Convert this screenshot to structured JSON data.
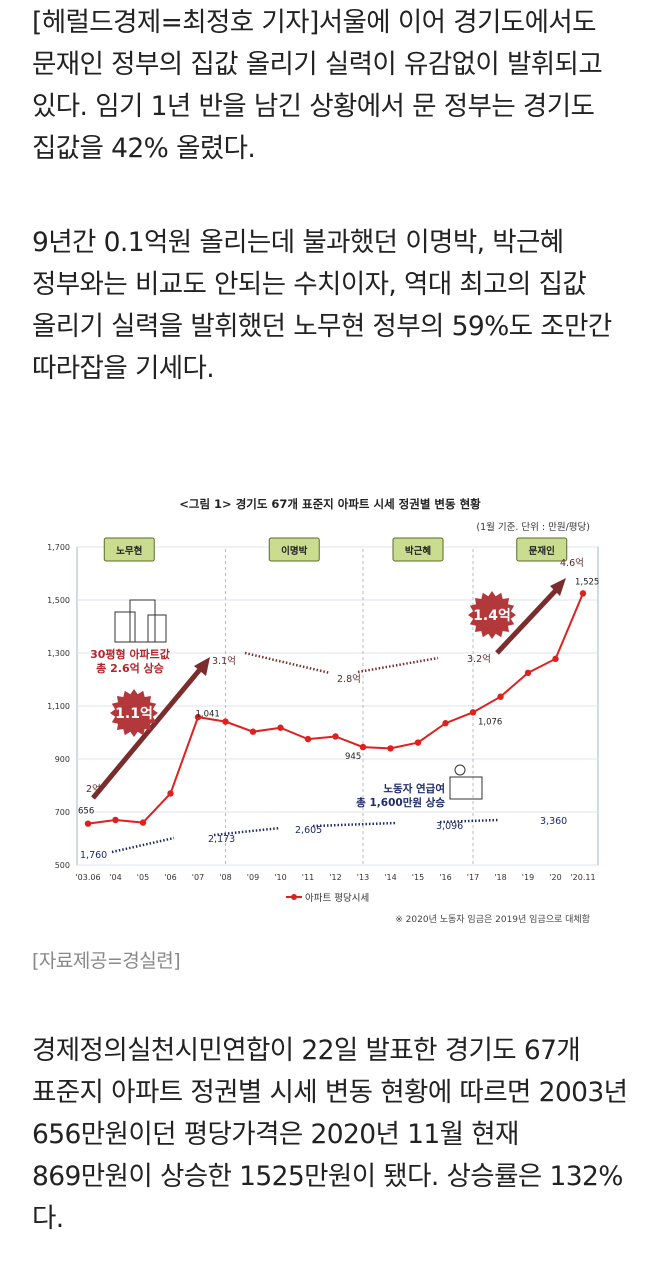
{
  "article": {
    "paragraph_1": "[헤럴드경제=최정호 기자]서울에 이어 경기도에서도 문재인 정부의 집값 올리기 실력이 유감없이 발휘되고 있다. 임기 1년 반을 남긴 상황에서 문 정부는 경기도 집값을 42% 올렸다.",
    "paragraph_2": "9년간 0.1억원 올리는데 불과했던 이명박, 박근혜 정부와는 비교도 안되는 수치이자, 역대 최고의 집값 올리기 실력을 발휘했던 노무현 정부의 59%도 조만간 따라잡을 기세다.",
    "image_caption": "[자료제공=경실련]",
    "paragraph_3": "경제정의실천시민연합이 22일 발표한 경기도 67개 표준지 아파트 정권별 시세 변동 현황에 따르면 2003년 656만원이던 평당가격은 2020년 11월 현재 869만원이 상승한 1525만원이 됐다. 상승률은 132%다."
  },
  "chart_data": {
    "type": "line",
    "title": "<그림 1> 경기도 67개 표준지 아파트 시세 정권별 변동 현황",
    "subtitle": "(1월 기준. 단위 : 만원/평당)",
    "categories": [
      "'03.06",
      "'04",
      "'05",
      "'06",
      "'07",
      "'08",
      "'09",
      "'10",
      "'11",
      "'12",
      "'13",
      "'14",
      "'15",
      "'16",
      "'17",
      "'18",
      "'19",
      "'20",
      "'20.11"
    ],
    "series": [
      {
        "name": "아파트 평당시세",
        "color": "#e0201f",
        "values": [
          656,
          670,
          660,
          770,
          1058,
          1041,
          1003,
          1018,
          975,
          985,
          945,
          940,
          962,
          1035,
          1076,
          1135,
          1225,
          1278,
          1525
        ]
      }
    ],
    "data_labels": [
      {
        "index": 0,
        "text": "656"
      },
      {
        "index": 5,
        "text": "1,041"
      },
      {
        "index": 10,
        "text": "945"
      },
      {
        "index": 14,
        "text": "1,076"
      },
      {
        "index": 18,
        "text": "1,525"
      }
    ],
    "ylim": [
      500,
      1700
    ],
    "yticks": [
      "500",
      "700",
      "900",
      "1,100",
      "1,300",
      "1,500",
      "1,700"
    ],
    "grid": true,
    "legend": "bottom",
    "eras": [
      "노무현",
      "이명박",
      "박근혜",
      "문재인"
    ],
    "wage_labels": [
      "1,760",
      "2,173",
      "2,605",
      "3,096",
      "3,360"
    ],
    "price_30pyeong_labels": [
      "2억",
      "3.1억",
      "2.8억",
      "3.2억",
      "4.6억"
    ],
    "bursts": [
      "1.1억",
      "1.4억"
    ],
    "apartment_note": [
      "30평형 아파트값",
      "총 2.6억 상승"
    ],
    "wage_note": [
      "노동자 연급여",
      "총 1,600만원 상승"
    ],
    "footnote": "※ 2020년 노동자 임금은 2019년 임금으로 대체함",
    "colors": {
      "line": "#e0201f",
      "arrow": "#7b2c2c",
      "wage": "#1f2a6b",
      "era_box": "#c9dc8f",
      "note_red": "#b3252a"
    }
  }
}
